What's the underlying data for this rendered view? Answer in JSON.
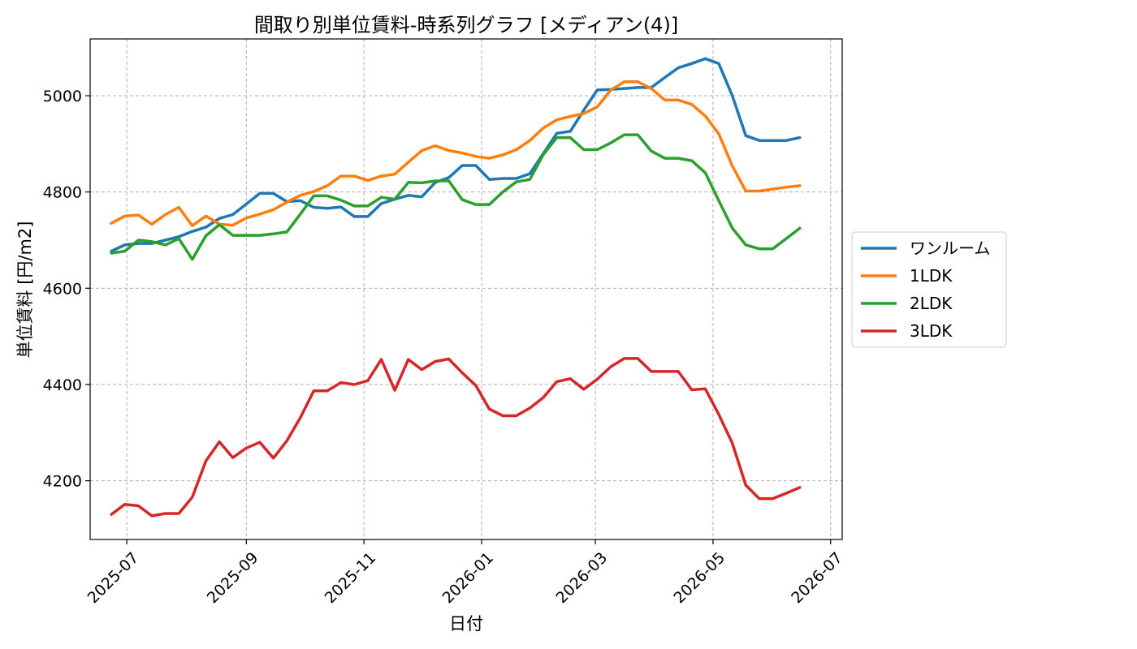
{
  "chart_data": {
    "type": "line",
    "title": "間取り別単位賃料-時系列グラフ [メディアン(4)]",
    "xlabel": "日付",
    "ylabel": "単位賃料 [円/m2]",
    "xlim": [
      "2025-06-12",
      "2026-07-07"
    ],
    "ylim": [
      4078,
      5118
    ],
    "x_ticks": [
      "2025-07-01",
      "2025-09-01",
      "2025-11-01",
      "2026-01-01",
      "2026-03-01",
      "2026-05-01",
      "2026-07-01"
    ],
    "x_tick_labels": [
      "2025-07",
      "2025-09",
      "2025-11",
      "2026-01",
      "2026-03",
      "2026-05",
      "2026-07"
    ],
    "y_ticks": [
      4200,
      4400,
      4600,
      4800,
      5000
    ],
    "grid": true,
    "legend_position": "right-outside",
    "x": [
      "2025-06-23",
      "2025-06-30",
      "2025-07-07",
      "2025-07-14",
      "2025-07-21",
      "2025-07-28",
      "2025-08-04",
      "2025-08-11",
      "2025-08-18",
      "2025-08-25",
      "2025-09-01",
      "2025-09-08",
      "2025-09-15",
      "2025-09-22",
      "2025-09-29",
      "2025-10-06",
      "2025-10-13",
      "2025-10-20",
      "2025-10-27",
      "2025-11-03",
      "2025-11-10",
      "2025-11-17",
      "2025-11-24",
      "2025-12-01",
      "2025-12-08",
      "2025-12-15",
      "2025-12-22",
      "2025-12-29",
      "2026-01-05",
      "2026-01-12",
      "2026-01-19",
      "2026-01-26",
      "2026-02-02",
      "2026-02-09",
      "2026-02-16",
      "2026-02-23",
      "2026-03-02",
      "2026-03-09",
      "2026-03-16",
      "2026-03-23",
      "2026-03-30",
      "2026-04-06",
      "2026-04-13",
      "2026-04-20",
      "2026-04-27",
      "2026-05-04",
      "2026-05-11",
      "2026-05-18",
      "2026-05-25",
      "2026-06-01",
      "2026-06-08",
      "2026-06-15"
    ],
    "series": [
      {
        "name": "ワンルーム",
        "color": "#1f77b4",
        "values": [
          4677,
          4690,
          4693,
          4693,
          4700,
          4707,
          4718,
          4727,
          4745,
          4753,
          4775,
          4797,
          4797,
          4780,
          4782,
          4768,
          4766,
          4769,
          4749,
          4749,
          4776,
          4785,
          4793,
          4790,
          4820,
          4830,
          4855,
          4855,
          4826,
          4828,
          4828,
          4838,
          4880,
          4922,
          4926,
          4970,
          5012,
          5013,
          5015,
          5017,
          5017,
          5038,
          5058,
          5067,
          5077,
          5067,
          5000,
          4917,
          4907,
          4907,
          4907,
          4913
        ]
      },
      {
        "name": "1LDK",
        "color": "#ff7f0e",
        "values": [
          4735,
          4750,
          4752,
          4733,
          4753,
          4768,
          4730,
          4750,
          4733,
          4731,
          4746,
          4754,
          4763,
          4779,
          4793,
          4801,
          4813,
          4833,
          4833,
          4824,
          4833,
          4837,
          4862,
          4886,
          4896,
          4886,
          4881,
          4874,
          4870,
          4877,
          4888,
          4907,
          4933,
          4950,
          4957,
          4963,
          4977,
          5012,
          5029,
          5029,
          5015,
          4991,
          4991,
          4982,
          4958,
          4921,
          4854,
          4802,
          4802,
          4806,
          4810,
          4813
        ]
      },
      {
        "name": "2LDK",
        "color": "#2ca02c",
        "values": [
          4673,
          4677,
          4700,
          4697,
          4690,
          4703,
          4660,
          4709,
          4732,
          4710,
          4710,
          4710,
          4713,
          4717,
          4754,
          4792,
          4792,
          4783,
          4771,
          4771,
          4789,
          4785,
          4820,
          4819,
          4823,
          4823,
          4784,
          4774,
          4774,
          4800,
          4821,
          4826,
          4878,
          4913,
          4913,
          4888,
          4888,
          4902,
          4919,
          4919,
          4885,
          4870,
          4870,
          4865,
          4840,
          4782,
          4725,
          4690,
          4682,
          4682,
          4703,
          4725
        ]
      },
      {
        "name": "3LDK",
        "color": "#d62728",
        "values": [
          4130,
          4151,
          4148,
          4127,
          4132,
          4132,
          4166,
          4241,
          4281,
          4248,
          4268,
          4280,
          4247,
          4283,
          4331,
          4387,
          4387,
          4404,
          4400,
          4408,
          4452,
          4388,
          4452,
          4431,
          4448,
          4453,
          4424,
          4398,
          4349,
          4335,
          4335,
          4351,
          4373,
          4406,
          4412,
          4390,
          4411,
          4437,
          4454,
          4454,
          4427,
          4427,
          4427,
          4389,
          4391,
          4338,
          4278,
          4191,
          4163,
          4163,
          4174,
          4186
        ]
      }
    ]
  }
}
